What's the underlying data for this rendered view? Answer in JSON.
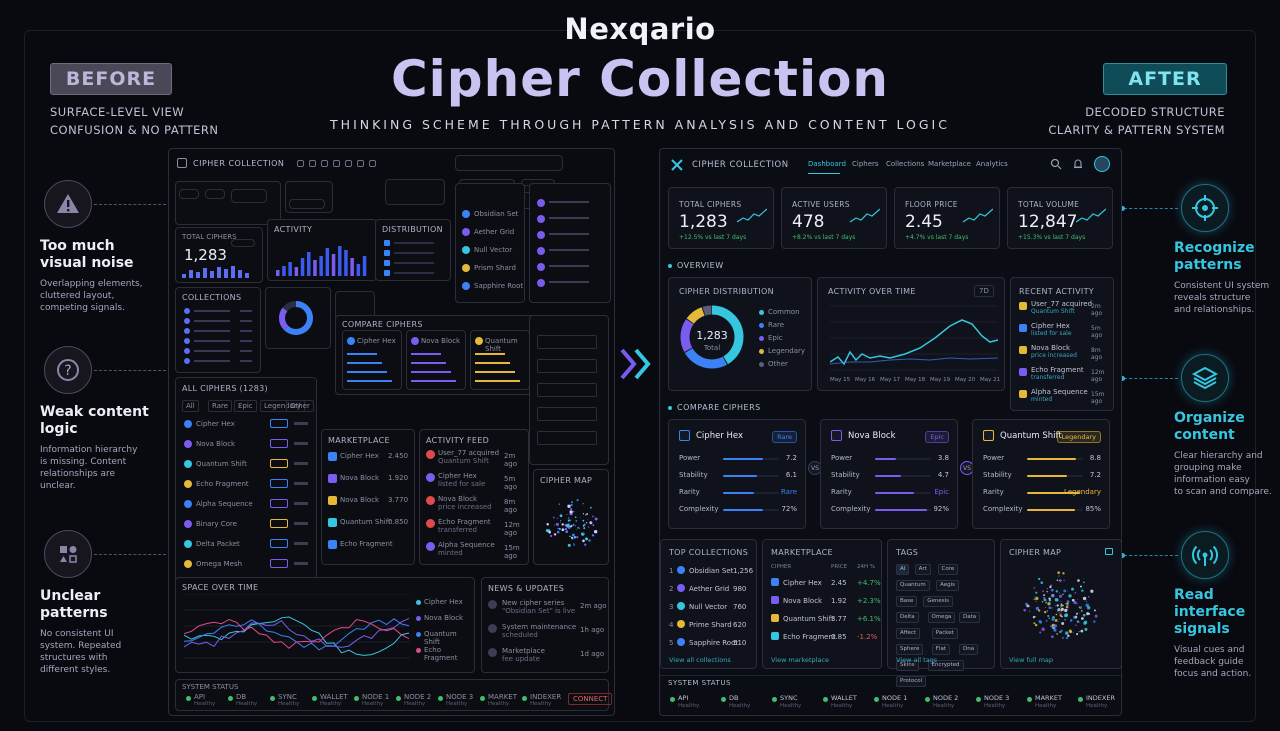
{
  "brand": "Nexqario",
  "title": "Cipher Collection",
  "subtitle": "THINKING SCHEME THROUGH PATTERN ANALYSIS AND CONTENT LOGIC",
  "before": {
    "tag": "BEFORE",
    "line1": "SURFACE-LEVEL VIEW",
    "line2": "CONFUSION & NO PATTERN"
  },
  "after": {
    "tag": "AFTER",
    "line1": "DECODED STRUCTURE",
    "line2": "CLARITY & PATTERN SYSTEM"
  },
  "issues": [
    {
      "icon": "warning-icon",
      "title1": "Too much",
      "title2": "visual noise",
      "desc": [
        "Overlapping elements,",
        "cluttered layout,",
        "competing signals."
      ]
    },
    {
      "icon": "question-icon",
      "title1": "Weak content",
      "title2": "logic",
      "desc": [
        "Information hierarchy",
        "is missing. Content",
        "relationships are",
        "unclear."
      ]
    },
    {
      "icon": "pattern-icon",
      "title1": "Unclear",
      "title2": "patterns",
      "desc": [
        "No consistent UI",
        "system. Repeated",
        "structures with",
        "different styles."
      ]
    }
  ],
  "benefits": [
    {
      "icon": "target-icon",
      "title1": "Recognize",
      "title2": "patterns",
      "desc": [
        "Consistent UI system",
        "reveals structure",
        "and relationships."
      ]
    },
    {
      "icon": "layers-icon",
      "title1": "Organize",
      "title2": "content",
      "desc": [
        "Clear hierarchy and",
        "grouping make",
        "information easy",
        "to scan and compare."
      ]
    },
    {
      "icon": "signal-icon",
      "title1": "Read interface",
      "title2": "signals",
      "desc": [
        "Visual cues and",
        "feedback guide",
        "focus and action."
      ]
    }
  ],
  "colors": {
    "accent": "#35c6e0",
    "purple": "#7b5cf0",
    "blue": "#3b82f6",
    "gold": "#e6b83a",
    "green": "#3fbf6b"
  },
  "bf": {
    "app": "CIPHER COLLECTION",
    "stat_label": "TOTAL CIPHERS",
    "stat_value": "1,283",
    "activity": "ACTIVITY",
    "distribution": "DISTRIBUTION",
    "collections": "COLLECTIONS",
    "compare": "COMPARE CIPHERS",
    "compare_items": [
      "Cipher Hex",
      "Nova Block",
      "Quantum Shift"
    ],
    "list_items": [
      "Obsidian Set",
      "Aether Grid",
      "Null Vector",
      "Prism Shard",
      "Sapphire Root"
    ],
    "all_ciphers": "ALL CIPHERS (1283)",
    "filters": [
      "All",
      "Rare",
      "Epic",
      "Legendary",
      "Other"
    ],
    "all_items": [
      "Cipher Hex",
      "Nova Block",
      "Quantum Shift",
      "Echo Fragment",
      "Alpha Sequence",
      "Binary Core",
      "Delta Packet",
      "Omega Mesh"
    ],
    "marketplace": "MARKETPLACE",
    "mk_items": [
      {
        "n": "Cipher Hex",
        "p": "2.450"
      },
      {
        "n": "Nova Block",
        "p": "1.920"
      },
      {
        "n": "Nova Block",
        "p": "3.770"
      },
      {
        "n": "Quantum Shift",
        "p": "0.850"
      },
      {
        "n": "Echo Fragment",
        "p": ""
      }
    ],
    "feed": "ACTIVITY FEED",
    "feed_items": [
      {
        "t1": "User_77 acquired",
        "t2": "Quantum Shift",
        "ago": "2m ago"
      },
      {
        "t1": "Cipher Hex",
        "t2": "listed for sale",
        "ago": "5m ago"
      },
      {
        "t1": "Nova Block",
        "t2": "price increased",
        "ago": "8m ago"
      },
      {
        "t1": "Echo Fragment",
        "t2": "transferred",
        "ago": "12m ago"
      },
      {
        "t1": "Alpha Sequence",
        "t2": "minted",
        "ago": "15m ago"
      }
    ],
    "map": "CIPHER MAP",
    "chart_title": "SPACE OVER TIME",
    "legend": [
      "Cipher Hex",
      "Nova Block",
      "Quantum Shift",
      "Echo Fragment"
    ],
    "news": "NEWS & UPDATES",
    "news_items": [
      {
        "t1": "New cipher series",
        "t2": "\"Obsidian Set\" is live",
        "ago": "2m ago"
      },
      {
        "t1": "System maintenance",
        "t2": "scheduled",
        "ago": "1h ago"
      },
      {
        "t1": "Marketplace",
        "t2": "fee update",
        "ago": "1d ago"
      }
    ],
    "status": "SYSTEM STATUS",
    "status_items": [
      "API",
      "DB",
      "SYNC",
      "WALLET",
      "NODE 1",
      "NODE 2",
      "NODE 3",
      "MARKET",
      "INDEXER"
    ],
    "status_sub": "Healthy",
    "connect": "CONNECT"
  },
  "af": {
    "app": "CIPHER COLLECTION",
    "nav": [
      "Dashboard",
      "Ciphers",
      "Collections",
      "Marketplace",
      "Analytics"
    ],
    "stats": [
      {
        "label": "TOTAL CIPHERS",
        "value": "1,283",
        "delta": "+12.5% vs last 7 days"
      },
      {
        "label": "ACTIVE USERS",
        "value": "478",
        "delta": "+8.2% vs last 7 days"
      },
      {
        "label": "FLOOR PRICE",
        "value": "2.45",
        "delta": "+4.7% vs last 7 days"
      },
      {
        "label": "TOTAL VOLUME",
        "value": "12,847",
        "delta": "+15.3% vs last 7 days"
      }
    ],
    "overview": "OVERVIEW",
    "dist_title": "CIPHER DISTRIBUTION",
    "dist_total": "1,283",
    "dist_total_label": "Total",
    "dist_legend": [
      "Common",
      "Rare",
      "Epic",
      "Legendary",
      "Other"
    ],
    "activity_title": "ACTIVITY OVER TIME",
    "activity_range": "7D",
    "activity_x": [
      "May 15",
      "May 16",
      "May 17",
      "May 18",
      "May 19",
      "May 20",
      "May 21"
    ],
    "recent_title": "RECENT ACTIVITY",
    "recent": [
      {
        "t1": "User_77 acquired",
        "t2": "Quantum Shift",
        "ago": "2m ago"
      },
      {
        "t1": "Cipher Hex",
        "t2": "listed for sale",
        "ago": "5m ago"
      },
      {
        "t1": "Nova Block",
        "t2": "price increased",
        "ago": "8m ago"
      },
      {
        "t1": "Echo Fragment",
        "t2": "transferred",
        "ago": "12m ago"
      },
      {
        "t1": "Alpha Sequence",
        "t2": "minted",
        "ago": "15m ago"
      }
    ],
    "compare_title": "COMPARE CIPHERS",
    "vs": "VS",
    "compare": [
      {
        "name": "Cipher Hex",
        "tag": "Rare",
        "color": "#3b82f6",
        "stats": [
          {
            "k": "Power",
            "v": "7.2",
            "f": 0.72
          },
          {
            "k": "Stability",
            "v": "6.1",
            "f": 0.61
          },
          {
            "k": "Rarity",
            "v": "Rare",
            "f": 0.55
          },
          {
            "k": "Complexity",
            "v": "72%",
            "f": 0.72
          }
        ]
      },
      {
        "name": "Nova Block",
        "tag": "Epic",
        "color": "#7b5cf0",
        "stats": [
          {
            "k": "Power",
            "v": "3.8",
            "f": 0.38
          },
          {
            "k": "Stability",
            "v": "4.7",
            "f": 0.47
          },
          {
            "k": "Rarity",
            "v": "Epic",
            "f": 0.7
          },
          {
            "k": "Complexity",
            "v": "92%",
            "f": 0.92
          }
        ]
      },
      {
        "name": "Quantum Shift",
        "tag": "Legendary",
        "color": "#e6b83a",
        "stats": [
          {
            "k": "Power",
            "v": "8.8",
            "f": 0.88
          },
          {
            "k": "Stability",
            "v": "7.2",
            "f": 0.72
          },
          {
            "k": "Rarity",
            "v": "Legendary",
            "f": 0.95
          },
          {
            "k": "Complexity",
            "v": "85%",
            "f": 0.85
          }
        ]
      }
    ],
    "top_title": "TOP COLLECTIONS",
    "top": [
      {
        "n": "Obsidian Set",
        "v": "1,256"
      },
      {
        "n": "Aether Grid",
        "v": "980"
      },
      {
        "n": "Null Vector",
        "v": "760"
      },
      {
        "n": "Prime Shard",
        "v": "620"
      },
      {
        "n": "Sapphire Root",
        "v": "510"
      }
    ],
    "top_link": "View all collections",
    "mk_title": "MARKETPLACE",
    "mk_head": [
      "CIPHER",
      "PRICE",
      "24H %"
    ],
    "mk": [
      {
        "n": "Cipher Hex",
        "p": "2.45",
        "c": "+4.7%"
      },
      {
        "n": "Nova Block",
        "p": "1.92",
        "c": "+2.3%"
      },
      {
        "n": "Quantum Shift",
        "p": "3.77",
        "c": "+6.1%"
      },
      {
        "n": "Echo Fragment",
        "p": "0.85",
        "c": "-1.2%"
      }
    ],
    "mk_link": "View marketplace",
    "tags_title": "TAGS",
    "tags": [
      "AI",
      "Art",
      "Core",
      "Quantum",
      "Aegis",
      "Base",
      "Genesis",
      "Delta",
      "Omega",
      "Data",
      "Affect",
      "Packet",
      "Sphere",
      "Flat",
      "Dna",
      "Skins",
      "Encrypted",
      "Protocol"
    ],
    "tags_link": "View all tags",
    "map_title": "CIPHER MAP",
    "map_link": "View full map",
    "status_title": "SYSTEM STATUS",
    "status": [
      "API",
      "DB",
      "SYNC",
      "WALLET",
      "NODE 1",
      "NODE 2",
      "NODE 3",
      "MARKET",
      "INDEXER"
    ],
    "status_sub": "Healthy"
  }
}
